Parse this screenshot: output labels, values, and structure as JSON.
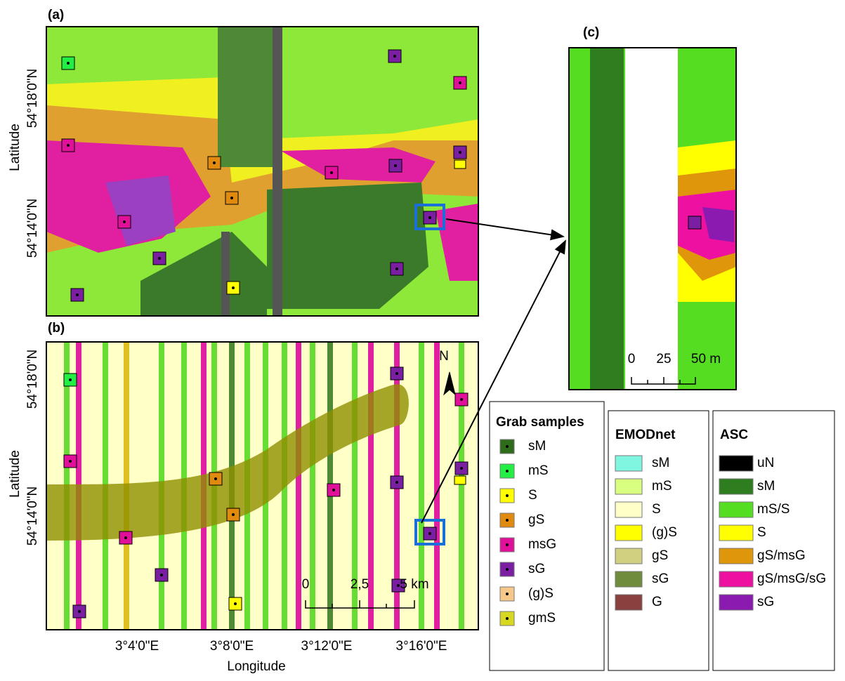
{
  "panels": {
    "a": {
      "label": "(a)",
      "y_axis_label": "Latitude",
      "y_ticks": [
        "54°18'0\"N",
        "54°14'0\"N"
      ]
    },
    "b": {
      "label": "(b)",
      "y_axis_label": "Latitude",
      "y_ticks": [
        "54°18'0\"N",
        "54°14'0\"N"
      ],
      "x_ticks": [
        "3°4'0\"E",
        "3°8'0\"E",
        "3°12'0\"E",
        "3°16'0\"E"
      ],
      "x_axis_label": "Longitude",
      "scale_bar": [
        "0",
        "2,5",
        "5 km"
      ],
      "north": "N"
    },
    "c": {
      "label": "(c)",
      "scale_bar": [
        "0",
        "25",
        "50 m"
      ]
    }
  },
  "legends": [
    {
      "title": "Grab samples",
      "items": [
        {
          "label": "sM",
          "color": "#2e6b1a"
        },
        {
          "label": "mS",
          "color": "#22ee44"
        },
        {
          "label": "S",
          "color": "#ffff00"
        },
        {
          "label": "gS",
          "color": "#e08a10"
        },
        {
          "label": "msG",
          "color": "#e0109a"
        },
        {
          "label": "sG",
          "color": "#7a1fa2"
        },
        {
          "label": "(g)S",
          "color": "#f5c88a"
        },
        {
          "label": "gmS",
          "color": "#d8d820"
        }
      ]
    },
    {
      "title": "EMODnet",
      "items": [
        {
          "label": "sM",
          "color": "#80f5e0"
        },
        {
          "label": "mS",
          "color": "#d8ff80"
        },
        {
          "label": "S",
          "color": "#ffffc8"
        },
        {
          "label": "(g)S",
          "color": "#ffff00"
        },
        {
          "label": "gS",
          "color": "#d0d080"
        },
        {
          "label": "sG",
          "color": "#6e8c3c"
        },
        {
          "label": "G",
          "color": "#8b4040"
        }
      ]
    },
    {
      "title": "ASC",
      "items": [
        {
          "label": "uN",
          "color": "#000000"
        },
        {
          "label": "sM",
          "color": "#2e7d1e"
        },
        {
          "label": "mS/S",
          "color": "#55dd22"
        },
        {
          "label": "S",
          "color": "#ffff00"
        },
        {
          "label": "gS/msG",
          "color": "#e0960a"
        },
        {
          "label": "gS/msG/sG",
          "color": "#ee10a0"
        },
        {
          "label": "sG",
          "color": "#8a1ab0"
        }
      ]
    }
  ]
}
